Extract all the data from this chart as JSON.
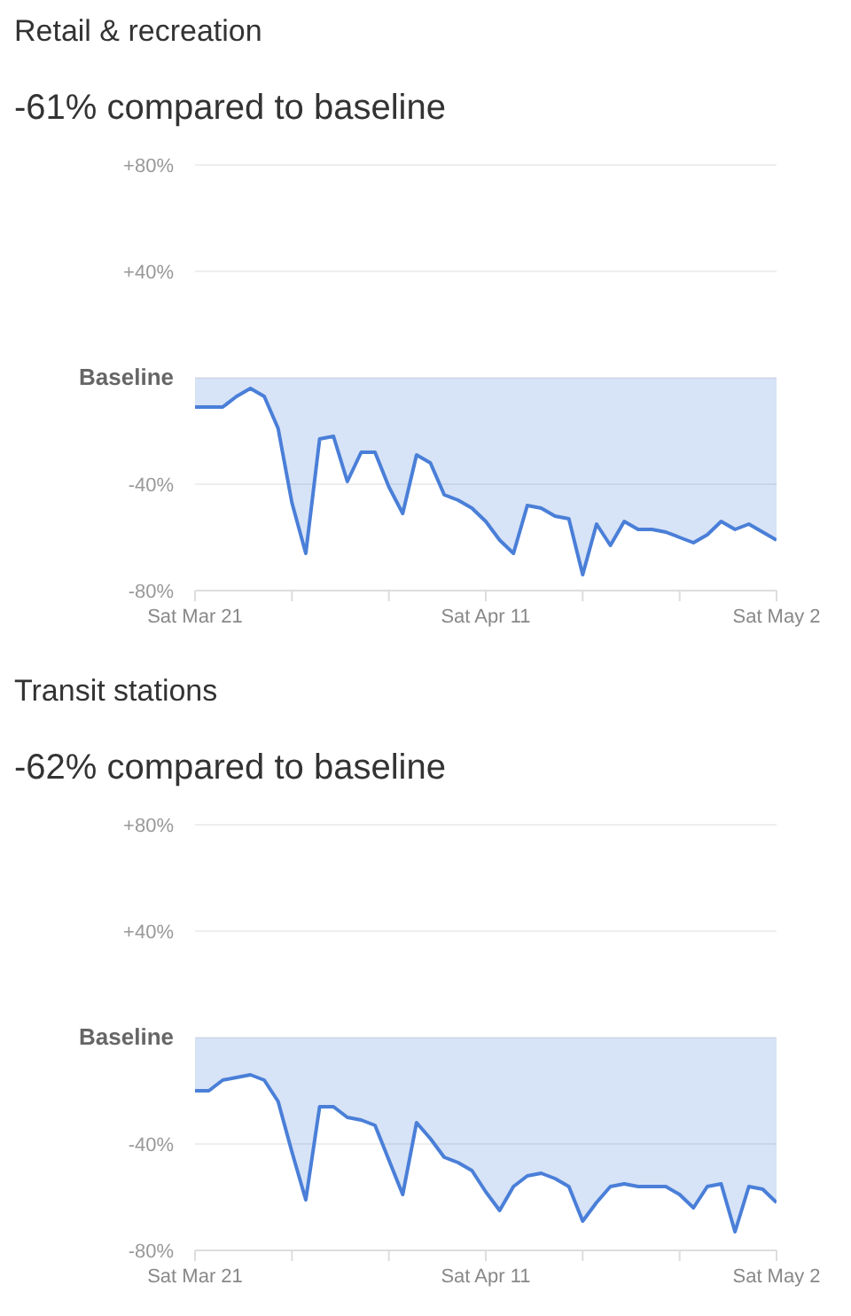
{
  "chart_data": [
    {
      "type": "area",
      "title": "Retail & recreation",
      "subtitle": "-61%  compared to baseline",
      "x": [
        "--03-21",
        "--03-22",
        "--03-23",
        "--03-24",
        "--03-25",
        "--03-26",
        "--03-27",
        "--03-28",
        "--03-29",
        "--03-30",
        "--03-31",
        "--04-01",
        "--04-02",
        "--04-03",
        "--04-04",
        "--04-05",
        "--04-06",
        "--04-07",
        "--04-08",
        "--04-09",
        "--04-10",
        "--04-11",
        "--04-12",
        "--04-13",
        "--04-14",
        "--04-15",
        "--04-16",
        "--04-17",
        "--04-18",
        "--04-19",
        "--04-20",
        "--04-21",
        "--04-22",
        "--04-23",
        "--04-24",
        "--04-25",
        "--04-26",
        "--04-27",
        "--04-28",
        "--04-29",
        "--04-30",
        "--05-01",
        "--05-02"
      ],
      "series": [
        {
          "color": "#4a7fd8",
          "values": [
            -11,
            -11,
            -11,
            -7,
            -4,
            -7,
            -19,
            -47,
            -66,
            -23,
            -22,
            -39,
            -28,
            -28,
            -41,
            -51,
            -29,
            -32,
            -44,
            -46,
            -49,
            -54,
            -61,
            -66,
            -48,
            -49,
            -52,
            -53,
            -74,
            -55,
            -63,
            -54,
            -57,
            -57,
            -58,
            -60,
            -62,
            -59,
            -54,
            -57,
            -55,
            -58,
            -61
          ]
        }
      ],
      "ylim": [
        -80,
        80
      ],
      "yticks": [
        {
          "value": -80,
          "label": "-80%"
        },
        {
          "value": -40,
          "label": "-40%"
        },
        {
          "value": 0,
          "label": "Baseline"
        },
        {
          "value": 40,
          "label": "+40%"
        },
        {
          "value": 80,
          "label": "+80%"
        }
      ],
      "xlim": [
        "--03-21",
        "--05-02"
      ],
      "xticks": [
        {
          "value": "--03-21",
          "label": "Sat Mar 21"
        },
        {
          "value": "--03-28",
          "label": null
        },
        {
          "value": "--04-04",
          "label": null
        },
        {
          "value": "--04-11",
          "label": "Sat Apr 11"
        },
        {
          "value": "--04-18",
          "label": null
        },
        {
          "value": "--04-25",
          "label": null
        },
        {
          "value": "--05-02",
          "label": "Sat May 2"
        }
      ],
      "grid": "y",
      "legend": false
    },
    {
      "type": "area",
      "title": "Transit stations",
      "subtitle": "-62%  compared to baseline",
      "x": [
        "--03-21",
        "--03-22",
        "--03-23",
        "--03-24",
        "--03-25",
        "--03-26",
        "--03-27",
        "--03-28",
        "--03-29",
        "--03-30",
        "--03-31",
        "--04-01",
        "--04-02",
        "--04-03",
        "--04-04",
        "--04-05",
        "--04-06",
        "--04-07",
        "--04-08",
        "--04-09",
        "--04-10",
        "--04-11",
        "--04-12",
        "--04-13",
        "--04-14",
        "--04-15",
        "--04-16",
        "--04-17",
        "--04-18",
        "--04-19",
        "--04-20",
        "--04-21",
        "--04-22",
        "--04-23",
        "--04-24",
        "--04-25",
        "--04-26",
        "--04-27",
        "--04-28",
        "--04-29",
        "--04-30",
        "--05-01",
        "--05-02"
      ],
      "series": [
        {
          "color": "#4a7fd8",
          "values": [
            -20,
            -20,
            -16,
            -15,
            -14,
            -16,
            -24,
            -43,
            -61,
            -26,
            -26,
            -30,
            -31,
            -33,
            -46,
            -59,
            -32,
            -38,
            -45,
            -47,
            -50,
            -58,
            -65,
            -56,
            -52,
            -51,
            -53,
            -56,
            -69,
            -62,
            -56,
            -55,
            -56,
            -56,
            -56,
            -59,
            -64,
            -56,
            -55,
            -73,
            -56,
            -57,
            -62
          ]
        }
      ],
      "ylim": [
        -80,
        80
      ],
      "yticks": [
        {
          "value": -80,
          "label": "-80%"
        },
        {
          "value": -40,
          "label": "-40%"
        },
        {
          "value": 0,
          "label": "Baseline"
        },
        {
          "value": 40,
          "label": "+40%"
        },
        {
          "value": 80,
          "label": "+80%"
        }
      ],
      "xlim": [
        "--03-21",
        "--05-02"
      ],
      "xticks": [
        {
          "value": "--03-21",
          "label": "Sat Mar 21"
        },
        {
          "value": "--03-28",
          "label": null
        },
        {
          "value": "--04-04",
          "label": null
        },
        {
          "value": "--04-11",
          "label": "Sat Apr 11"
        },
        {
          "value": "--04-18",
          "label": null
        },
        {
          "value": "--04-25",
          "label": null
        },
        {
          "value": "--05-02",
          "label": "Sat May 2"
        }
      ],
      "grid": "y",
      "legend": false
    }
  ]
}
